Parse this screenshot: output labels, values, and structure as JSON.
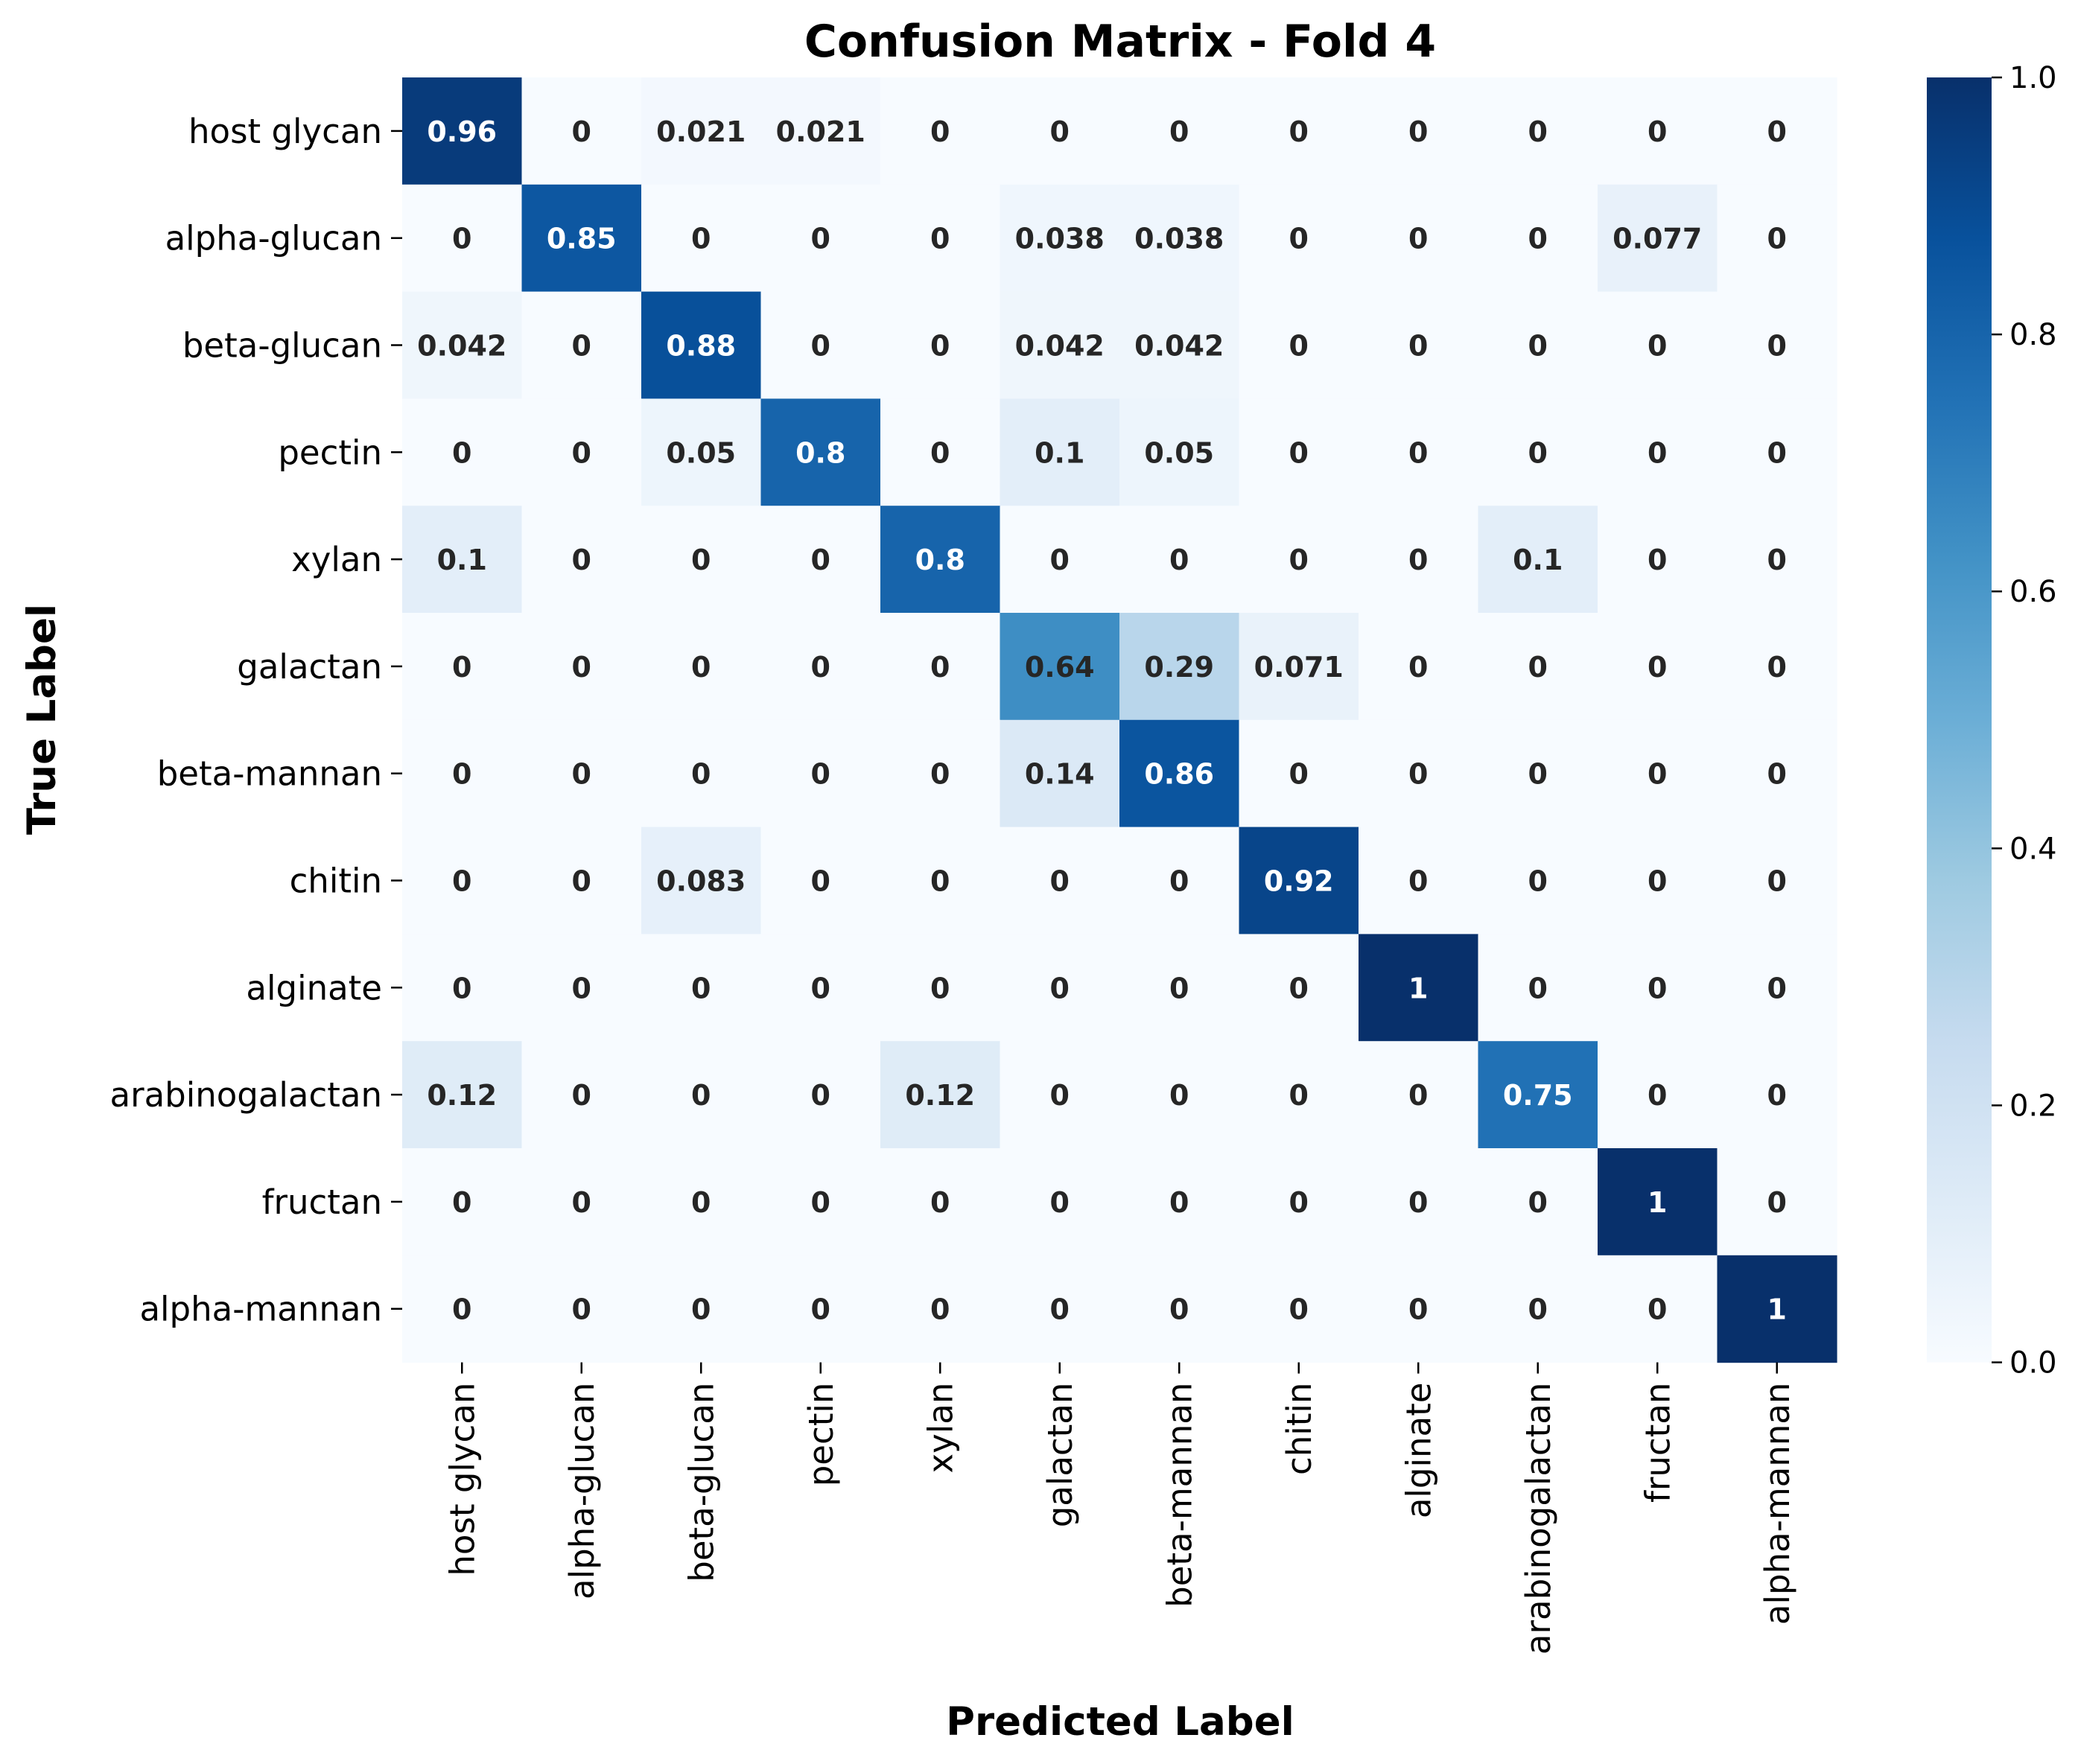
{
  "chart_data": {
    "type": "heatmap",
    "title": "Confusion Matrix - Fold 4",
    "xlabel": "Predicted Label",
    "ylabel": "True Label",
    "x_categories": [
      "host glycan",
      "alpha-glucan",
      "beta-glucan",
      "pectin",
      "xylan",
      "galactan",
      "beta-mannan",
      "chitin",
      "alginate",
      "arabinogalactan",
      "fructan",
      "alpha-mannan"
    ],
    "y_categories": [
      "host glycan",
      "alpha-glucan",
      "beta-glucan",
      "pectin",
      "xylan",
      "galactan",
      "beta-mannan",
      "chitin",
      "alginate",
      "arabinogalactan",
      "fructan",
      "alpha-mannan"
    ],
    "values": [
      [
        0.96,
        0,
        0.021,
        0.021,
        0,
        0,
        0,
        0,
        0,
        0,
        0,
        0
      ],
      [
        0,
        0.85,
        0,
        0,
        0,
        0.038,
        0.038,
        0,
        0,
        0,
        0.077,
        0
      ],
      [
        0.042,
        0,
        0.88,
        0,
        0,
        0.042,
        0.042,
        0,
        0,
        0,
        0,
        0
      ],
      [
        0,
        0,
        0.05,
        0.8,
        0,
        0.1,
        0.05,
        0,
        0,
        0,
        0,
        0
      ],
      [
        0.1,
        0,
        0,
        0,
        0.8,
        0,
        0,
        0,
        0,
        0.1,
        0,
        0
      ],
      [
        0,
        0,
        0,
        0,
        0,
        0.64,
        0.29,
        0.071,
        0,
        0,
        0,
        0
      ],
      [
        0,
        0,
        0,
        0,
        0,
        0.14,
        0.86,
        0,
        0,
        0,
        0,
        0
      ],
      [
        0,
        0,
        0.083,
        0,
        0,
        0,
        0,
        0.92,
        0,
        0,
        0,
        0
      ],
      [
        0,
        0,
        0,
        0,
        0,
        0,
        0,
        0,
        1,
        0,
        0,
        0
      ],
      [
        0.12,
        0,
        0,
        0,
        0.12,
        0,
        0,
        0,
        0,
        0.75,
        0,
        0
      ],
      [
        0,
        0,
        0,
        0,
        0,
        0,
        0,
        0,
        0,
        0,
        1,
        0
      ],
      [
        0,
        0,
        0,
        0,
        0,
        0,
        0,
        0,
        0,
        0,
        0,
        1
      ]
    ],
    "colormap": "Blues",
    "color_range": [
      0.0,
      1.0
    ],
    "colorbar_ticks": [
      0.0,
      0.2,
      0.4,
      0.6,
      0.8,
      1.0
    ],
    "colorbar_tick_labels": [
      "0.0",
      "0.2",
      "0.4",
      "0.6",
      "0.8",
      "1.0"
    ],
    "annotation_dark_color": "#262626",
    "annotation_light_color": "#ffffff",
    "grid": false
  }
}
